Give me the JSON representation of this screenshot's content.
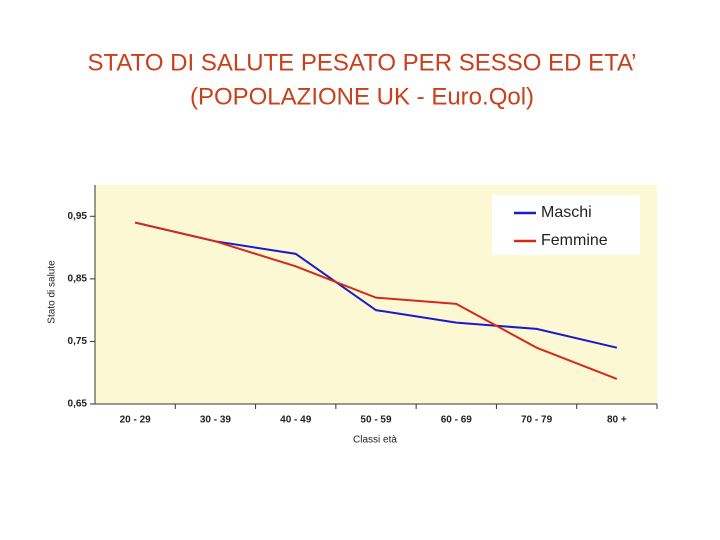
{
  "chart_data": {
    "type": "line",
    "title": [
      "STATO DI SALUTE PESATO PER SESSO ED ETA’",
      "(POPOLAZIONE UK - Euro.Qol)"
    ],
    "x_label": "Classi età",
    "y_label": "Stato di salute",
    "categories": [
      "20 - 29",
      "30 - 39",
      "40 - 49",
      "50 - 59",
      "60 - 69",
      "70 - 79",
      "80 +"
    ],
    "series": [
      {
        "name": "Maschi",
        "color": "#1a1ac8",
        "values": [
          0.94,
          0.91,
          0.89,
          0.8,
          0.78,
          0.77,
          0.74
        ]
      },
      {
        "name": "Femmine",
        "color": "#d42a1a",
        "values": [
          0.94,
          0.91,
          0.87,
          0.82,
          0.81,
          0.74,
          0.69
        ]
      }
    ],
    "ylim": [
      0.65,
      1.0
    ],
    "yticks": [
      {
        "value": 0.65,
        "label": "0,65"
      },
      {
        "value": 0.75,
        "label": "0,75"
      },
      {
        "value": 0.85,
        "label": "0,85"
      },
      {
        "value": 0.95,
        "label": "0,95"
      }
    ],
    "legend": "upper right",
    "background": "#fcf8d4"
  }
}
